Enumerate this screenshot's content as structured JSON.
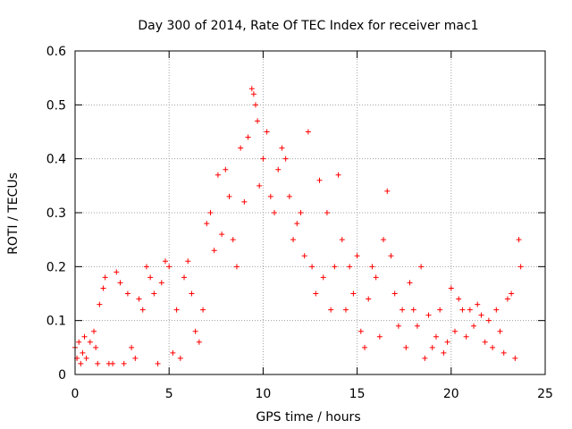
{
  "chart_data": {
    "type": "scatter",
    "title": "Day 300 of 2014, Rate Of TEC Index for receiver mac1",
    "xlabel": "GPS time / hours",
    "ylabel": "ROTI / TECUs",
    "xlim": [
      0,
      25
    ],
    "ylim": [
      0,
      0.6
    ],
    "xticks": [
      0,
      5,
      10,
      15,
      20,
      25
    ],
    "yticks": [
      0,
      0.1,
      0.2,
      0.3,
      0.4,
      0.5,
      0.6
    ],
    "xtick_labels": [
      "0",
      "5",
      "10",
      "15",
      "20",
      "25"
    ],
    "ytick_labels": [
      "0",
      "0.1",
      "0.2",
      "0.3",
      "0.4",
      "0.5",
      "0.6"
    ],
    "grid": true,
    "marker": "+",
    "color": "#ff0000",
    "series": [
      {
        "name": "ROTI",
        "x": [
          0.0,
          0.1,
          0.2,
          0.3,
          0.4,
          0.5,
          0.6,
          0.8,
          1.0,
          1.1,
          1.2,
          1.3,
          1.5,
          1.6,
          1.8,
          2.0,
          2.2,
          2.4,
          2.6,
          2.8,
          3.0,
          3.2,
          3.4,
          3.6,
          3.8,
          4.0,
          4.2,
          4.4,
          4.6,
          4.8,
          5.0,
          5.2,
          5.4,
          5.6,
          5.8,
          6.0,
          6.2,
          6.4,
          6.6,
          6.8,
          7.0,
          7.2,
          7.4,
          7.6,
          7.8,
          8.0,
          8.2,
          8.4,
          8.6,
          8.8,
          9.0,
          9.2,
          9.4,
          9.5,
          9.6,
          9.7,
          9.8,
          10.0,
          10.2,
          10.4,
          10.6,
          10.8,
          11.0,
          11.2,
          11.4,
          11.6,
          11.8,
          12.0,
          12.2,
          12.4,
          12.6,
          12.8,
          13.0,
          13.2,
          13.4,
          13.6,
          13.8,
          14.0,
          14.2,
          14.4,
          14.6,
          14.8,
          15.0,
          15.2,
          15.4,
          15.6,
          15.8,
          16.0,
          16.2,
          16.4,
          16.6,
          16.8,
          17.0,
          17.2,
          17.4,
          17.6,
          17.8,
          18.0,
          18.2,
          18.4,
          18.6,
          18.8,
          19.0,
          19.2,
          19.4,
          19.6,
          19.8,
          20.0,
          20.2,
          20.4,
          20.6,
          20.8,
          21.0,
          21.2,
          21.4,
          21.6,
          21.8,
          22.0,
          22.2,
          22.4,
          22.6,
          22.8,
          23.0,
          23.2,
          23.4,
          23.6,
          23.7
        ],
        "y": [
          0.05,
          0.03,
          0.06,
          0.02,
          0.04,
          0.07,
          0.03,
          0.06,
          0.08,
          0.05,
          0.02,
          0.13,
          0.16,
          0.18,
          0.02,
          0.02,
          0.19,
          0.17,
          0.02,
          0.15,
          0.05,
          0.03,
          0.14,
          0.12,
          0.2,
          0.18,
          0.15,
          0.02,
          0.17,
          0.21,
          0.2,
          0.04,
          0.12,
          0.03,
          0.18,
          0.21,
          0.15,
          0.08,
          0.06,
          0.12,
          0.28,
          0.3,
          0.23,
          0.37,
          0.26,
          0.38,
          0.33,
          0.25,
          0.2,
          0.42,
          0.32,
          0.44,
          0.53,
          0.52,
          0.5,
          0.47,
          0.35,
          0.4,
          0.45,
          0.33,
          0.3,
          0.38,
          0.42,
          0.4,
          0.33,
          0.25,
          0.28,
          0.3,
          0.22,
          0.45,
          0.2,
          0.15,
          0.36,
          0.18,
          0.3,
          0.12,
          0.2,
          0.37,
          0.25,
          0.12,
          0.2,
          0.15,
          0.22,
          0.08,
          0.05,
          0.14,
          0.2,
          0.18,
          0.07,
          0.25,
          0.34,
          0.22,
          0.15,
          0.09,
          0.12,
          0.05,
          0.17,
          0.12,
          0.09,
          0.2,
          0.03,
          0.11,
          0.05,
          0.07,
          0.12,
          0.04,
          0.06,
          0.16,
          0.08,
          0.14,
          0.12,
          0.07,
          0.12,
          0.09,
          0.13,
          0.11,
          0.06,
          0.1,
          0.05,
          0.12,
          0.08,
          0.04,
          0.14,
          0.15,
          0.03,
          0.25,
          0.2
        ]
      }
    ]
  }
}
